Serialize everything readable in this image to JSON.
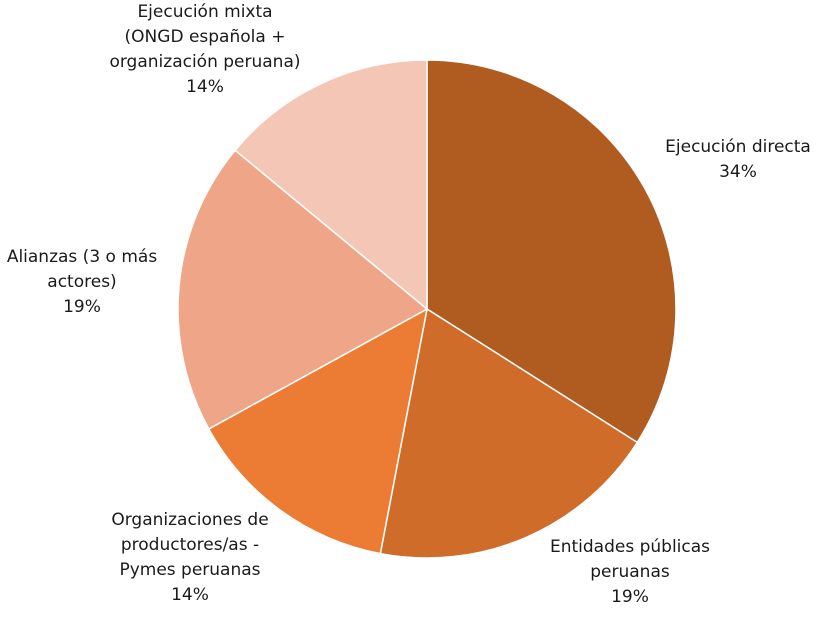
{
  "chart_data": {
    "type": "pie",
    "title": "",
    "slices": [
      {
        "label_lines": [
          "Ejecución directa"
        ],
        "percent_label": "34%",
        "value": 34,
        "color": "#B05C20"
      },
      {
        "label_lines": [
          "Entidades públicas",
          "peruanas"
        ],
        "percent_label": "19%",
        "value": 19,
        "color": "#D06C2A"
      },
      {
        "label_lines": [
          "Organizaciones de",
          "productores/as -",
          "Pymes peruanas"
        ],
        "percent_label": "14%",
        "value": 14,
        "color": "#EC7C34"
      },
      {
        "label_lines": [
          "Alianzas (3 o más",
          "actores)"
        ],
        "percent_label": "19%",
        "value": 19,
        "color": "#EFA688"
      },
      {
        "label_lines": [
          "Ejecución mixta",
          "(ONGD española +",
          "organización peruana)"
        ],
        "percent_label": "14%",
        "value": 14,
        "color": "#F4C6B6"
      }
    ],
    "start_angle_deg": 0,
    "direction": "clockwise",
    "legend": "none"
  }
}
